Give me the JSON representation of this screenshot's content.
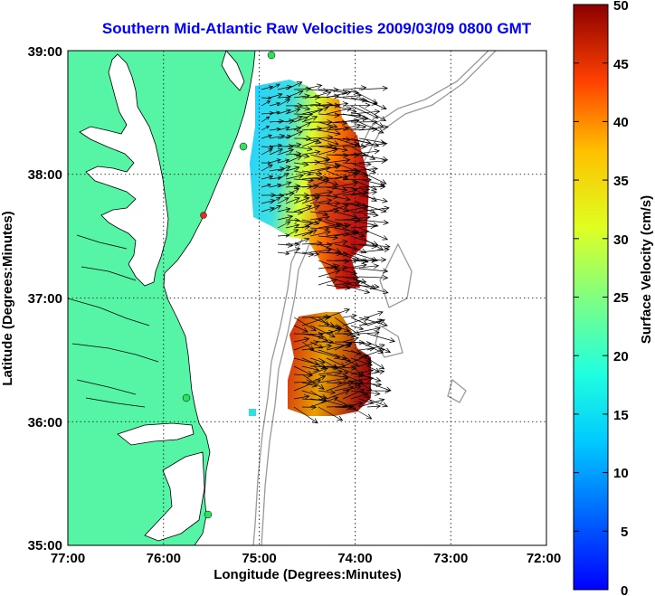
{
  "map": {
    "title": "Southern Mid-Atlantic Raw Velocities 2009/03/09 0800 GMT",
    "xlabel": "Longitude (Degrees:Minutes)",
    "ylabel": "Latitude (Degrees:Minutes)",
    "x_ticks": [
      "77:00",
      "76:00",
      "75:00",
      "74:00",
      "73:00",
      "72:00"
    ],
    "y_ticks": [
      "39:00",
      "38:00",
      "37:00",
      "36:00",
      "35:00"
    ],
    "colors": {
      "land": "#55f5a5",
      "title": "#0000ff",
      "grid": "#000000",
      "bathymetry": "#999999"
    }
  },
  "colorbar": {
    "label": "Surface Velocity (cm/s)",
    "ticks": [
      "50",
      "45",
      "40",
      "35",
      "30",
      "25",
      "20",
      "15",
      "10",
      "5",
      "0"
    ],
    "range": [
      0,
      50
    ],
    "colormap": "jet"
  }
}
